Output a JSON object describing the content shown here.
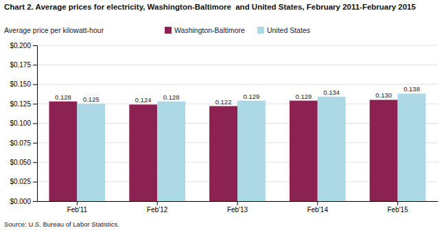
{
  "chart_data": {
    "type": "bar",
    "title": "Chart 2. Average prices for electricity, Washington-Baltimore  and United States, February 2011-February 2015",
    "y_label": "Average price per kilowatt-hour",
    "source": "Source: U.S. Bureau of Labor Statistics.",
    "categories": [
      "Feb'11",
      "Feb'12",
      "Feb'13",
      "Feb'14",
      "Feb'15"
    ],
    "series": [
      {
        "name": "Washington-Baltimore",
        "color": "#8B2252",
        "values": [
          0.128,
          0.124,
          0.122,
          0.129,
          0.13
        ],
        "value_labels": [
          "0.128",
          "0.124",
          "0.122",
          "0.129",
          "0.130"
        ]
      },
      {
        "name": "United States",
        "color": "#ADD8E6",
        "values": [
          0.125,
          0.128,
          0.129,
          0.134,
          0.138
        ],
        "value_labels": [
          "0.125",
          "0.128",
          "0.129",
          "0.134",
          "0.138"
        ]
      }
    ],
    "ylim": [
      0.0,
      0.2
    ],
    "yticks": [
      {
        "value": 0.0,
        "label": "$0.000"
      },
      {
        "value": 0.025,
        "label": "$0.025"
      },
      {
        "value": 0.05,
        "label": "$0.050"
      },
      {
        "value": 0.075,
        "label": "$0.075"
      },
      {
        "value": 0.1,
        "label": "$0.100"
      },
      {
        "value": 0.125,
        "label": "$0.125"
      },
      {
        "value": 0.15,
        "label": "$0.150"
      },
      {
        "value": 0.175,
        "label": "$0.175"
      },
      {
        "value": 0.2,
        "label": "$0.200"
      }
    ],
    "grid": true,
    "legend": "top",
    "data_labels": true
  }
}
